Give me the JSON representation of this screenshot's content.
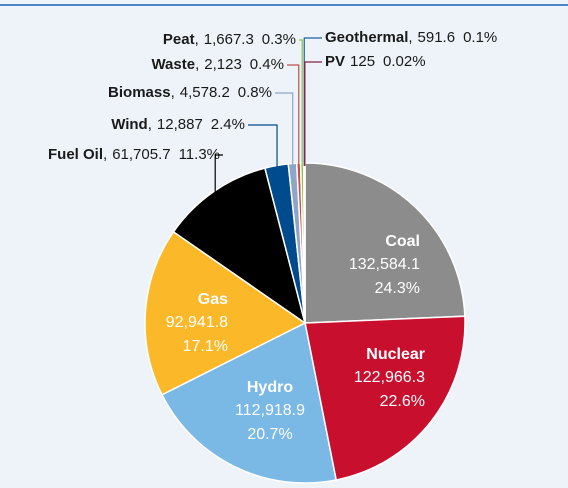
{
  "chart_data": {
    "type": "pie",
    "categories": [
      "Coal",
      "Nuclear",
      "Hydro",
      "Gas",
      "Fuel Oil",
      "Wind",
      "Biomass",
      "Waste",
      "Peat",
      "Geothermal",
      "PV"
    ],
    "values": [
      132584.1,
      122966.3,
      112918.9,
      92941.8,
      61705.7,
      12887,
      4578.2,
      2123,
      1667.3,
      591.6,
      125
    ],
    "value_labels": [
      "132,584.1",
      "122,966.3",
      "112,918.9",
      "92,941.8",
      "61,705.7",
      "12,887",
      "4,578.2",
      "2,123",
      "1,667.3",
      "591.6",
      "125"
    ],
    "percent_labels": [
      "24.3%",
      "22.6%",
      "20.7%",
      "17.1%",
      "11.3%",
      "2.4%",
      "0.8%",
      "0.4%",
      "0.3%",
      "0.1%",
      "0.02%"
    ],
    "name_suffixes": [
      null,
      null,
      null,
      null,
      ",",
      ",",
      ",",
      ",",
      ",",
      ",",
      null
    ],
    "colors": [
      "#8c8c8c",
      "#c8102e",
      "#7ab8e6",
      "#fbb829",
      "#000000",
      "#004b8d",
      "#8fa5c8",
      "#c0504d",
      "#8cc63f",
      "#1f5fa8",
      "#8b2040"
    ]
  }
}
